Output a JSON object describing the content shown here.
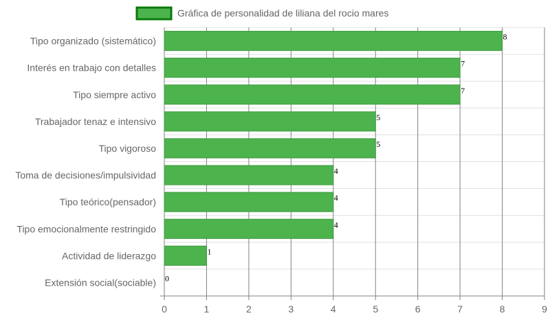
{
  "chart_data": {
    "type": "bar",
    "orientation": "horizontal",
    "categories": [
      "Tipo organizado (sistemático)",
      "Interés en trabajo con detalles",
      "Tipo siempre activo",
      "Trabajador tenaz e intensivo",
      "Tipo vigoroso",
      "Toma de decisiones/impulsividad",
      "Tipo teórico(pensador)",
      "Tipo emocionalmente restringido",
      "Actividad de liderazgo",
      "Extensión social(sociable)"
    ],
    "series": [
      {
        "name": "Gráfica de personalidad de liliana del rocio mares",
        "values": [
          8,
          7,
          7,
          5,
          5,
          4,
          4,
          4,
          1,
          0
        ]
      }
    ],
    "value_labels": [
      "8",
      "7",
      "7",
      "5",
      "5",
      "4",
      "4",
      "4",
      "1",
      "0"
    ],
    "x_ticks": [
      "0",
      "1",
      "2",
      "3",
      "4",
      "5",
      "6",
      "7",
      "8",
      "9"
    ],
    "xlim": [
      0,
      9
    ],
    "xlabel": "",
    "ylabel": "",
    "grid": true,
    "legend_position": "top",
    "colors": {
      "bar_fill": "#4db34d",
      "bar_border": "#3e9a3e",
      "legend_fill": "#4db34d",
      "legend_border": "#0a7a0a",
      "grid_vertical": "#808080",
      "grid_horizontal": "#e0e0e0",
      "text": "#666666",
      "value_text": "#000000"
    }
  }
}
